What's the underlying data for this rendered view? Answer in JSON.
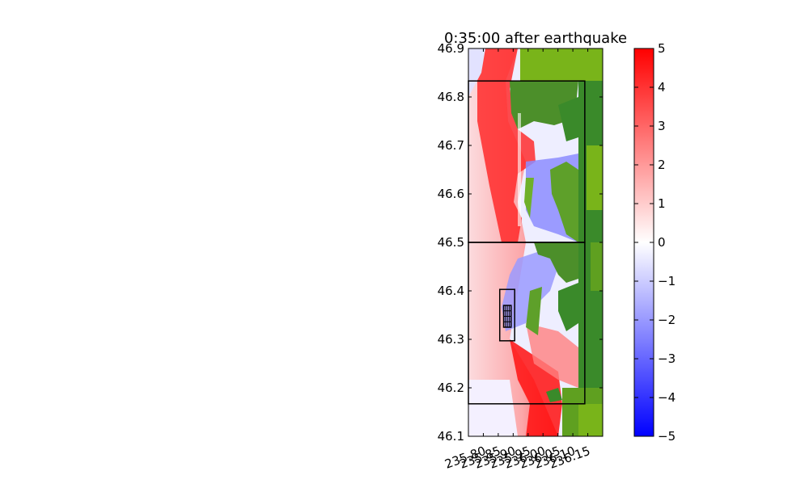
{
  "chart_data": {
    "type": "heatmap",
    "title": "0:35:00 after earthquake",
    "xlabel": "",
    "ylabel": "",
    "xlim": [
      235.75,
      236.2
    ],
    "ylim": [
      46.1,
      46.9
    ],
    "x_ticks": [
      235.8,
      235.85,
      235.9,
      235.95,
      236.0,
      236.05,
      236.1,
      236.15
    ],
    "x_tick_labels": [
      "235.80",
      "235.85",
      "235.90",
      "235.95",
      "236.00",
      "236.05",
      "236.10",
      "236.15"
    ],
    "y_ticks": [
      46.1,
      46.2,
      46.3,
      46.4,
      46.5,
      46.6,
      46.7,
      46.8,
      46.9
    ],
    "y_tick_labels": [
      "46.1",
      "46.2",
      "46.3",
      "46.4",
      "46.5",
      "46.6",
      "46.7",
      "46.8",
      "46.9"
    ],
    "colorbar": {
      "min": -5,
      "max": 5,
      "ticks": [
        5,
        4,
        3,
        2,
        1,
        0,
        -1,
        -2,
        -3,
        -4,
        -5
      ],
      "tick_labels": [
        "5",
        "4",
        "3",
        "2",
        "1",
        "0",
        "−1",
        "−2",
        "−3",
        "−4",
        "−5"
      ],
      "colors": [
        "#0000ff",
        "#ffffff",
        "#ff0000"
      ]
    },
    "colors": {
      "land": "#3a8a2a",
      "land_light": "#79b41a",
      "wave_high": "#ff0000",
      "wave_low": "#7070ff"
    },
    "grid": false,
    "refinement_patches": [
      {
        "x": [
          235.75,
          236.14
        ],
        "y": [
          46.5,
          46.833
        ]
      },
      {
        "x": [
          235.75,
          236.14
        ],
        "y": [
          46.167,
          46.5
        ]
      },
      {
        "x": [
          235.855,
          235.905
        ],
        "y": [
          46.297,
          46.403
        ]
      },
      {
        "x": [
          235.868,
          235.893
        ],
        "y": [
          46.325,
          46.37
        ]
      }
    ]
  }
}
